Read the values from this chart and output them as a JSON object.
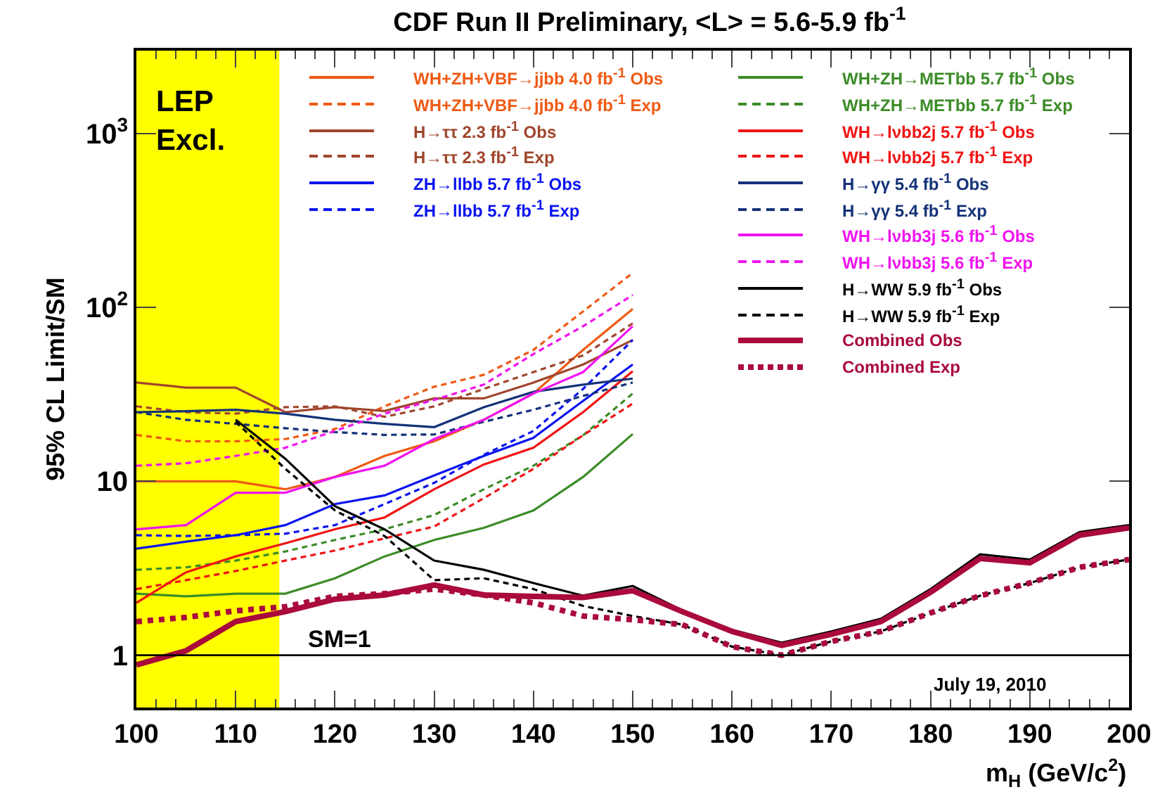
{
  "chart_data": {
    "type": "line",
    "title": "CDF Run II Preliminary, <L> = 5.6-5.9 fb$^{-1}$",
    "xlabel": "m$_{H}$ (GeV/c$^{2}$)",
    "ylabel": "95% CL Limit/SM",
    "x": [
      100,
      105,
      110,
      115,
      120,
      125,
      130,
      135,
      140,
      145,
      150,
      155,
      160,
      165,
      170,
      175,
      180,
      185,
      190,
      195,
      200
    ],
    "xlim": [
      100,
      200
    ],
    "xticks": [
      100,
      110,
      120,
      130,
      140,
      150,
      160,
      170,
      180,
      190,
      200
    ],
    "ylim": [
      0.5,
      3000
    ],
    "log": true,
    "yticks": [
      1,
      10,
      {
        "value": 100,
        "label": "10$^{2}$"
      },
      {
        "value": 1000,
        "label": "10$^{3}$"
      }
    ],
    "grid": false,
    "legend": "top",
    "marker": "none",
    "bands": [
      {
        "axis": "x",
        "from": 100,
        "to": 114.4,
        "label": "LEP\nExcl.",
        "color": "#ffff00"
      }
    ],
    "ref_lines": [
      {
        "axis": "y",
        "value": 1,
        "label": "SM=1",
        "color": "#000000",
        "line_style": "solid"
      }
    ],
    "annotations": [
      "July 19, 2010"
    ],
    "series": [
      {
        "name": "WH+ZH+VBF→jjbb 4.0 fb$^{-1}$ Obs",
        "color": "#f05a14",
        "line_style": "solid",
        "x": [
          100,
          105,
          110,
          115,
          120,
          125,
          130,
          135,
          140,
          145,
          150
        ],
        "values": [
          10,
          10,
          10,
          9,
          10.6,
          14,
          17,
          22.6,
          32,
          57,
          98
        ]
      },
      {
        "name": "WH+ZH+VBF→jjbb 4.0 fb$^{-1}$ Exp",
        "color": "#f05a14",
        "line_style": "dashed",
        "x": [
          100,
          105,
          110,
          115,
          120,
          125,
          130,
          135,
          140,
          145,
          150
        ],
        "values": [
          18.5,
          17,
          17,
          17.5,
          20,
          27,
          35,
          41,
          57,
          95,
          158
        ]
      },
      {
        "name": "H→ττ 2.3 fb$^{-1}$ Obs",
        "color": "#a0462d",
        "line_style": "solid",
        "x": [
          100,
          105,
          110,
          115,
          120,
          125,
          130,
          135,
          140,
          145,
          150
        ],
        "values": [
          37,
          34.6,
          34.6,
          25,
          26.7,
          25.4,
          30,
          30,
          37,
          47,
          65
        ]
      },
      {
        "name": "H→ττ 2.3 fb$^{-1}$ Exp",
        "color": "#a0462d",
        "line_style": "dashed",
        "x": [
          100,
          105,
          110,
          115,
          120,
          125,
          130,
          135,
          140,
          145,
          150
        ],
        "values": [
          27,
          25,
          24.5,
          26.7,
          27,
          23.5,
          27,
          34,
          42.5,
          53,
          81
        ]
      },
      {
        "name": "ZH→llbb 5.7 fb$^{-1}$ Obs",
        "color": "#0a14f0",
        "line_style": "solid",
        "x": [
          100,
          105,
          110,
          115,
          120,
          125,
          130,
          135,
          140,
          145,
          150
        ],
        "values": [
          4.1,
          4.5,
          4.9,
          5.6,
          7.4,
          8.3,
          10.8,
          14,
          17.8,
          29,
          47
        ]
      },
      {
        "name": "ZH→llbb 5.7 fb$^{-1}$ Exp",
        "color": "#0a14f0",
        "line_style": "dashed",
        "x": [
          100,
          105,
          110,
          115,
          120,
          125,
          130,
          135,
          140,
          145,
          150
        ],
        "values": [
          4.9,
          4.85,
          4.9,
          5,
          5.6,
          7.4,
          9.8,
          14.2,
          19.5,
          34,
          65
        ]
      },
      {
        "name": "WH+ZH→METbb 5.7 fb$^{-1}$ Obs",
        "color": "#3c8c28",
        "line_style": "solid",
        "x": [
          100,
          105,
          110,
          115,
          120,
          125,
          130,
          135,
          140,
          145,
          150
        ],
        "values": [
          2.26,
          2.18,
          2.26,
          2.26,
          2.77,
          3.7,
          4.6,
          5.4,
          6.8,
          10.6,
          18.7
        ]
      },
      {
        "name": "WH+ZH→METbb 5.7 fb$^{-1}$ Exp",
        "color": "#3c8c28",
        "line_style": "dashed",
        "x": [
          100,
          105,
          110,
          115,
          120,
          125,
          130,
          135,
          140,
          145,
          150
        ],
        "values": [
          3.1,
          3.2,
          3.5,
          3.95,
          4.6,
          5.3,
          6.4,
          9,
          12.3,
          18.4,
          32
        ]
      },
      {
        "name": "WH→lνbb2j 5.7 fb$^{-1}$ Obs",
        "color": "#f01414",
        "line_style": "solid",
        "x": [
          100,
          105,
          110,
          115,
          120,
          125,
          130,
          135,
          140,
          145,
          150
        ],
        "values": [
          2,
          3,
          3.7,
          4.4,
          5.3,
          6.2,
          9,
          12.5,
          15.6,
          25,
          43
        ]
      },
      {
        "name": "WH→lνbb2j 5.7 fb$^{-1}$ Exp",
        "color": "#f01414",
        "line_style": "dashed",
        "x": [
          100,
          105,
          110,
          115,
          120,
          125,
          130,
          135,
          140,
          145,
          150
        ],
        "values": [
          2.4,
          2.7,
          3.05,
          3.5,
          4,
          4.7,
          5.5,
          8,
          11.8,
          18.4,
          28
        ]
      },
      {
        "name": "H→γγ 5.4 fb$^{-1}$ Obs",
        "color": "#143278",
        "line_style": "solid",
        "x": [
          100,
          105,
          110,
          115,
          120,
          125,
          130,
          135,
          140,
          145,
          150
        ],
        "values": [
          25,
          25.3,
          25.8,
          24.5,
          22.6,
          21.4,
          20.5,
          26.7,
          32.7,
          36,
          39
        ]
      },
      {
        "name": "H→γγ 5.4 fb$^{-1}$ Exp",
        "color": "#143278",
        "line_style": "dashed",
        "x": [
          100,
          105,
          110,
          115,
          120,
          125,
          130,
          135,
          140,
          145,
          150
        ],
        "values": [
          25,
          22.6,
          21.4,
          20.2,
          19.2,
          18.5,
          18.6,
          22,
          25.8,
          31,
          37
        ]
      },
      {
        "name": "WH→lνbb3j 5.6 fb$^{-1}$ Obs",
        "color": "#f014f0",
        "line_style": "solid",
        "x": [
          100,
          105,
          110,
          115,
          120,
          125,
          130,
          135,
          140,
          145,
          150
        ],
        "values": [
          5.3,
          5.6,
          8.6,
          8.6,
          10.6,
          12.3,
          17.5,
          22.6,
          32,
          42.5,
          78
        ]
      },
      {
        "name": "WH→lνbb3j 5.6 fb$^{-1}$ Exp",
        "color": "#f014f0",
        "line_style": "dashed",
        "x": [
          100,
          105,
          110,
          115,
          120,
          125,
          130,
          135,
          140,
          145,
          150
        ],
        "values": [
          12.3,
          12.7,
          14,
          15.6,
          19.5,
          24.5,
          29.4,
          36,
          54,
          78,
          118
        ]
      },
      {
        "name": "H→WW 5.9 fb$^{-1}$ Obs",
        "color": "#000000",
        "line_style": "solid",
        "values": [
          null,
          null,
          22.6,
          13.5,
          7.2,
          5.3,
          3.5,
          3.1,
          2.6,
          2.2,
          2.5,
          1.81,
          1.4,
          1.18,
          1.37,
          1.62,
          2.4,
          3.8,
          3.55,
          5.1,
          5.6
        ]
      },
      {
        "name": "H→WW 5.9 fb$^{-1}$ Exp",
        "color": "#000000",
        "line_style": "dashed",
        "values": [
          null,
          null,
          22,
          11.8,
          6.8,
          4.85,
          2.7,
          2.77,
          2.4,
          1.92,
          1.68,
          1.5,
          1.12,
          1,
          1.2,
          1.37,
          1.75,
          2.2,
          2.6,
          3.2,
          3.55
        ]
      },
      {
        "name": "Combined Obs",
        "color": "#aa0a3c",
        "line_style": "solid",
        "values": [
          0.88,
          1.06,
          1.56,
          1.78,
          2.1,
          2.22,
          2.53,
          2.22,
          2.18,
          2.15,
          2.35,
          1.78,
          1.37,
          1.14,
          1.32,
          1.56,
          2.3,
          3.6,
          3.4,
          4.9,
          5.4
        ]
      },
      {
        "name": "Combined Exp",
        "color": "#aa0a3c",
        "line_style": "dotted",
        "values": [
          1.56,
          1.65,
          1.8,
          1.9,
          2.18,
          2.26,
          2.4,
          2.22,
          2,
          1.68,
          1.6,
          1.5,
          1.12,
          1,
          1.2,
          1.37,
          1.75,
          2.2,
          2.6,
          3.2,
          3.55
        ]
      }
    ]
  }
}
